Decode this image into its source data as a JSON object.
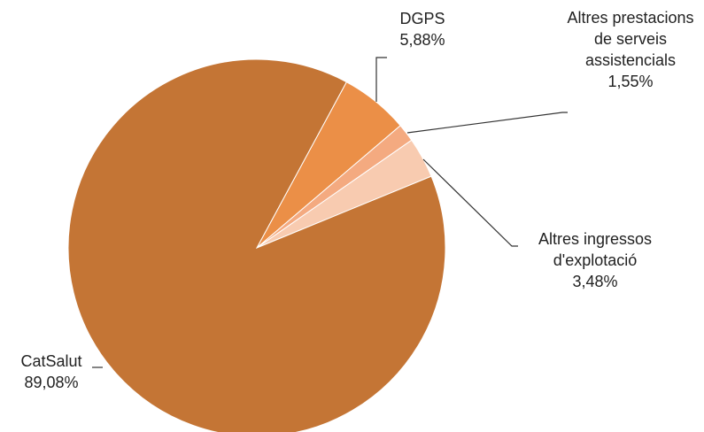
{
  "chart_data": {
    "type": "pie",
    "categories": [
      "DGPS",
      "Altres prestacions de serveis assistencials",
      "Altres ingressos d'explotació",
      "CatSalut"
    ],
    "values": [
      5.88,
      1.55,
      3.48,
      89.08
    ],
    "value_labels": [
      "5,88%",
      "1,55%",
      "3,48%",
      "89,08%"
    ],
    "colors": [
      "#EB8F47",
      "#F4AA80",
      "#F8CBB0",
      "#C47535"
    ]
  }
}
